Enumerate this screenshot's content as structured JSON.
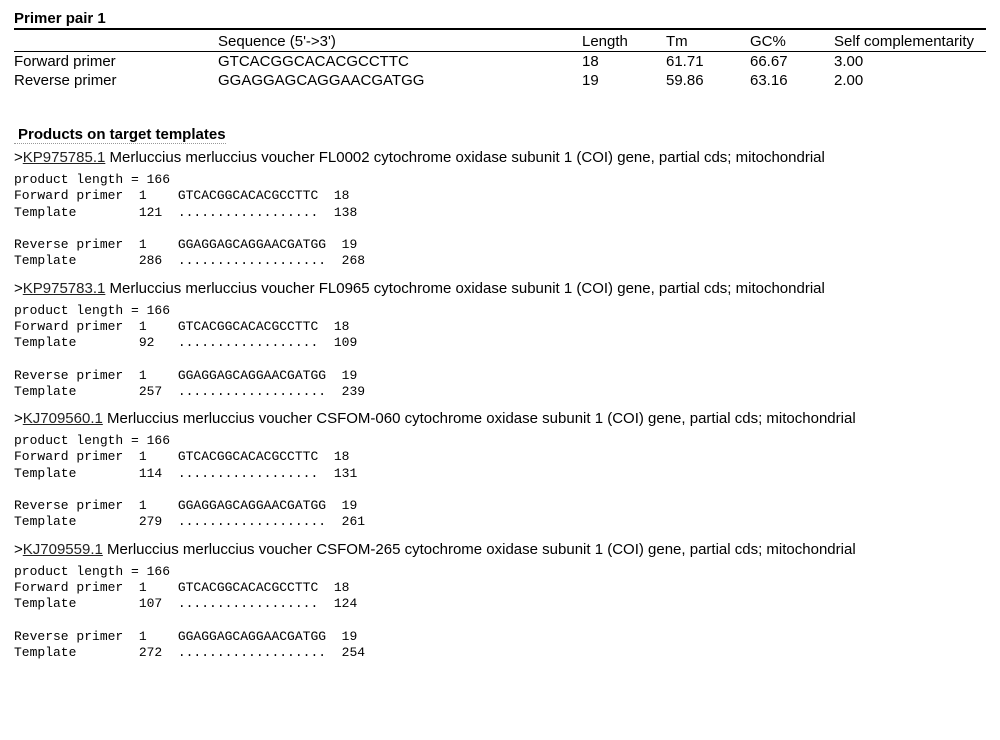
{
  "primer_pair_title": "Primer pair 1",
  "columns": {
    "seq": "Sequence (5'->3')",
    "len": "Length",
    "tm": "Tm",
    "gc": "GC%",
    "self": "Self complementarity"
  },
  "primers": {
    "forward": {
      "label": "Forward primer",
      "seq": "GTCACGGCACACGCCTTC",
      "len": "18",
      "tm": "61.71",
      "gc": "66.67",
      "self": "3.00"
    },
    "reverse": {
      "label": "Reverse primer",
      "seq": "GGAGGAGCAGGAACGATGG",
      "len": "19",
      "tm": "59.86",
      "gc": "63.16",
      "self": "2.00"
    }
  },
  "products_title": "Products on target templates",
  "targets": [
    {
      "acc": "KP975785.1",
      "desc": "Merluccius merluccius voucher FL0002 cytochrome oxidase subunit 1 (COI) gene, partial cds; mitochondrial",
      "block": "product length = 166\nForward primer  1    GTCACGGCACACGCCTTC  18\nTemplate        121  ..................  138\n\nReverse primer  1    GGAGGAGCAGGAACGATGG  19\nTemplate        286  ...................  268"
    },
    {
      "acc": "KP975783.1",
      "desc": "Merluccius merluccius voucher FL0965 cytochrome oxidase subunit 1 (COI) gene, partial cds; mitochondrial",
      "block": "product length = 166\nForward primer  1    GTCACGGCACACGCCTTC  18\nTemplate        92   ..................  109\n\nReverse primer  1    GGAGGAGCAGGAACGATGG  19\nTemplate        257  ...................  239"
    },
    {
      "acc": "KJ709560.1",
      "desc": "Merluccius merluccius voucher CSFOM-060 cytochrome oxidase subunit 1 (COI) gene, partial cds; mitochondrial",
      "block": "product length = 166\nForward primer  1    GTCACGGCACACGCCTTC  18\nTemplate        114  ..................  131\n\nReverse primer  1    GGAGGAGCAGGAACGATGG  19\nTemplate        279  ...................  261"
    },
    {
      "acc": "KJ709559.1",
      "desc": "Merluccius merluccius voucher CSFOM-265 cytochrome oxidase subunit 1 (COI) gene, partial cds; mitochondrial",
      "block": "product length = 166\nForward primer  1    GTCACGGCACACGCCTTC  18\nTemplate        107  ..................  124\n\nReverse primer  1    GGAGGAGCAGGAACGATGG  19\nTemplate        272  ...................  254"
    }
  ]
}
